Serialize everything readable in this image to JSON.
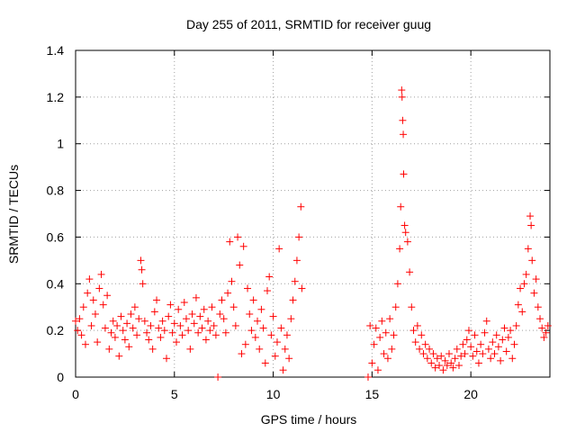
{
  "chart_data": {
    "type": "scatter",
    "title": "Day 255 of 2011, SRMTID for receiver guug",
    "xlabel": "GPS time / hours",
    "ylabel": "SRMTID / TECUs",
    "xlim": [
      0,
      24
    ],
    "ylim": [
      0,
      1.4
    ],
    "xticks": [
      0,
      5,
      10,
      15,
      20
    ],
    "yticks": [
      0,
      0.2,
      0.4,
      0.6,
      0.8,
      1,
      1.2,
      1.4
    ],
    "xtick_labels": [
      "0",
      "5",
      "10",
      "15",
      "20"
    ],
    "ytick_labels": [
      "0",
      "0.2",
      "0.4",
      "0.6",
      "0.8",
      "1",
      "1.2",
      "1.4"
    ],
    "grid": true,
    "marker": "+",
    "color": "#ff0000",
    "series": [
      {
        "name": "SRMTID",
        "points": [
          [
            0.0,
            0.24
          ],
          [
            0.1,
            0.2
          ],
          [
            0.2,
            0.25
          ],
          [
            0.3,
            0.18
          ],
          [
            0.4,
            0.3
          ],
          [
            0.5,
            0.14
          ],
          [
            0.6,
            0.36
          ],
          [
            0.7,
            0.42
          ],
          [
            0.8,
            0.22
          ],
          [
            0.9,
            0.33
          ],
          [
            1.0,
            0.27
          ],
          [
            1.1,
            0.15
          ],
          [
            1.2,
            0.38
          ],
          [
            1.3,
            0.44
          ],
          [
            1.4,
            0.31
          ],
          [
            1.5,
            0.21
          ],
          [
            1.6,
            0.35
          ],
          [
            1.7,
            0.12
          ],
          [
            1.8,
            0.19
          ],
          [
            1.9,
            0.24
          ],
          [
            2.0,
            0.17
          ],
          [
            2.1,
            0.22
          ],
          [
            2.2,
            0.09
          ],
          [
            2.3,
            0.26
          ],
          [
            2.4,
            0.2
          ],
          [
            2.5,
            0.16
          ],
          [
            2.6,
            0.23
          ],
          [
            2.7,
            0.13
          ],
          [
            2.8,
            0.27
          ],
          [
            2.9,
            0.21
          ],
          [
            3.0,
            0.3
          ],
          [
            3.1,
            0.18
          ],
          [
            3.2,
            0.25
          ],
          [
            3.3,
            0.5
          ],
          [
            3.35,
            0.46
          ],
          [
            3.4,
            0.4
          ],
          [
            3.5,
            0.24
          ],
          [
            3.6,
            0.19
          ],
          [
            3.7,
            0.16
          ],
          [
            3.8,
            0.22
          ],
          [
            3.9,
            0.12
          ],
          [
            4.0,
            0.28
          ],
          [
            4.1,
            0.33
          ],
          [
            4.2,
            0.21
          ],
          [
            4.3,
            0.17
          ],
          [
            4.4,
            0.24
          ],
          [
            4.5,
            0.2
          ],
          [
            4.6,
            0.08
          ],
          [
            4.7,
            0.26
          ],
          [
            4.8,
            0.31
          ],
          [
            4.9,
            0.19
          ],
          [
            5.0,
            0.23
          ],
          [
            5.1,
            0.15
          ],
          [
            5.2,
            0.29
          ],
          [
            5.3,
            0.22
          ],
          [
            5.4,
            0.18
          ],
          [
            5.5,
            0.32
          ],
          [
            5.6,
            0.25
          ],
          [
            5.7,
            0.2
          ],
          [
            5.8,
            0.12
          ],
          [
            5.9,
            0.27
          ],
          [
            6.0,
            0.23
          ],
          [
            6.1,
            0.34
          ],
          [
            6.2,
            0.19
          ],
          [
            6.3,
            0.26
          ],
          [
            6.4,
            0.21
          ],
          [
            6.5,
            0.29
          ],
          [
            6.6,
            0.16
          ],
          [
            6.7,
            0.24
          ],
          [
            6.8,
            0.2
          ],
          [
            6.9,
            0.3
          ],
          [
            7.0,
            0.22
          ],
          [
            7.1,
            0.18
          ],
          [
            7.2,
            0.0
          ],
          [
            7.3,
            0.27
          ],
          [
            7.4,
            0.33
          ],
          [
            7.5,
            0.25
          ],
          [
            7.6,
            0.19
          ],
          [
            7.7,
            0.36
          ],
          [
            7.8,
            0.58
          ],
          [
            7.9,
            0.41
          ],
          [
            8.0,
            0.3
          ],
          [
            8.1,
            0.22
          ],
          [
            8.2,
            0.6
          ],
          [
            8.3,
            0.48
          ],
          [
            8.4,
            0.1
          ],
          [
            8.5,
            0.56
          ],
          [
            8.6,
            0.14
          ],
          [
            8.7,
            0.38
          ],
          [
            8.8,
            0.27
          ],
          [
            8.9,
            0.2
          ],
          [
            9.0,
            0.33
          ],
          [
            9.1,
            0.17
          ],
          [
            9.2,
            0.24
          ],
          [
            9.3,
            0.12
          ],
          [
            9.4,
            0.29
          ],
          [
            9.5,
            0.21
          ],
          [
            9.6,
            0.06
          ],
          [
            9.7,
            0.37
          ],
          [
            9.8,
            0.43
          ],
          [
            9.9,
            0.18
          ],
          [
            10.0,
            0.26
          ],
          [
            10.1,
            0.09
          ],
          [
            10.2,
            0.15
          ],
          [
            10.3,
            0.55
          ],
          [
            10.4,
            0.21
          ],
          [
            10.5,
            0.03
          ],
          [
            10.6,
            0.12
          ],
          [
            10.7,
            0.18
          ],
          [
            10.8,
            0.08
          ],
          [
            10.9,
            0.25
          ],
          [
            11.0,
            0.33
          ],
          [
            11.1,
            0.41
          ],
          [
            11.2,
            0.5
          ],
          [
            11.3,
            0.6
          ],
          [
            11.4,
            0.73
          ],
          [
            11.45,
            0.38
          ],
          [
            14.8,
            0.0
          ],
          [
            14.9,
            0.22
          ],
          [
            15.0,
            0.06
          ],
          [
            15.1,
            0.14
          ],
          [
            15.2,
            0.21
          ],
          [
            15.3,
            0.03
          ],
          [
            15.4,
            0.17
          ],
          [
            15.5,
            0.24
          ],
          [
            15.6,
            0.1
          ],
          [
            15.7,
            0.19
          ],
          [
            15.8,
            0.08
          ],
          [
            15.9,
            0.25
          ],
          [
            16.0,
            0.12
          ],
          [
            16.1,
            0.18
          ],
          [
            16.2,
            0.3
          ],
          [
            16.3,
            0.4
          ],
          [
            16.4,
            0.55
          ],
          [
            16.45,
            0.73
          ],
          [
            16.5,
            1.23
          ],
          [
            16.52,
            1.2
          ],
          [
            16.55,
            1.1
          ],
          [
            16.58,
            1.04
          ],
          [
            16.6,
            0.87
          ],
          [
            16.65,
            0.65
          ],
          [
            16.7,
            0.62
          ],
          [
            16.8,
            0.58
          ],
          [
            16.9,
            0.45
          ],
          [
            17.0,
            0.3
          ],
          [
            17.1,
            0.2
          ],
          [
            17.2,
            0.15
          ],
          [
            17.3,
            0.22
          ],
          [
            17.4,
            0.12
          ],
          [
            17.5,
            0.18
          ],
          [
            17.6,
            0.1
          ],
          [
            17.7,
            0.14
          ],
          [
            17.8,
            0.08
          ],
          [
            17.9,
            0.12
          ],
          [
            18.0,
            0.06
          ],
          [
            18.1,
            0.1
          ],
          [
            18.2,
            0.04
          ],
          [
            18.3,
            0.08
          ],
          [
            18.4,
            0.05
          ],
          [
            18.5,
            0.09
          ],
          [
            18.6,
            0.03
          ],
          [
            18.7,
            0.07
          ],
          [
            18.8,
            0.05
          ],
          [
            18.9,
            0.1
          ],
          [
            19.0,
            0.06
          ],
          [
            19.1,
            0.04
          ],
          [
            19.2,
            0.08
          ],
          [
            19.3,
            0.12
          ],
          [
            19.4,
            0.05
          ],
          [
            19.5,
            0.09
          ],
          [
            19.6,
            0.14
          ],
          [
            19.7,
            0.1
          ],
          [
            19.8,
            0.16
          ],
          [
            19.9,
            0.2
          ],
          [
            20.0,
            0.13
          ],
          [
            20.1,
            0.09
          ],
          [
            20.2,
            0.18
          ],
          [
            20.3,
            0.11
          ],
          [
            20.4,
            0.06
          ],
          [
            20.5,
            0.14
          ],
          [
            20.6,
            0.1
          ],
          [
            20.7,
            0.19
          ],
          [
            20.8,
            0.24
          ],
          [
            20.9,
            0.12
          ],
          [
            21.0,
            0.08
          ],
          [
            21.1,
            0.15
          ],
          [
            21.2,
            0.1
          ],
          [
            21.3,
            0.18
          ],
          [
            21.4,
            0.13
          ],
          [
            21.5,
            0.07
          ],
          [
            21.6,
            0.16
          ],
          [
            21.7,
            0.21
          ],
          [
            21.8,
            0.11
          ],
          [
            21.9,
            0.17
          ],
          [
            22.0,
            0.2
          ],
          [
            22.1,
            0.08
          ],
          [
            22.2,
            0.14
          ],
          [
            22.3,
            0.22
          ],
          [
            22.4,
            0.31
          ],
          [
            22.5,
            0.38
          ],
          [
            22.6,
            0.28
          ],
          [
            22.7,
            0.4
          ],
          [
            22.8,
            0.44
          ],
          [
            22.9,
            0.55
          ],
          [
            23.0,
            0.69
          ],
          [
            23.05,
            0.65
          ],
          [
            23.1,
            0.5
          ],
          [
            23.2,
            0.36
          ],
          [
            23.3,
            0.42
          ],
          [
            23.4,
            0.3
          ],
          [
            23.5,
            0.25
          ],
          [
            23.6,
            0.21
          ],
          [
            23.7,
            0.17
          ],
          [
            23.8,
            0.19
          ],
          [
            23.9,
            0.22
          ]
        ]
      }
    ]
  }
}
